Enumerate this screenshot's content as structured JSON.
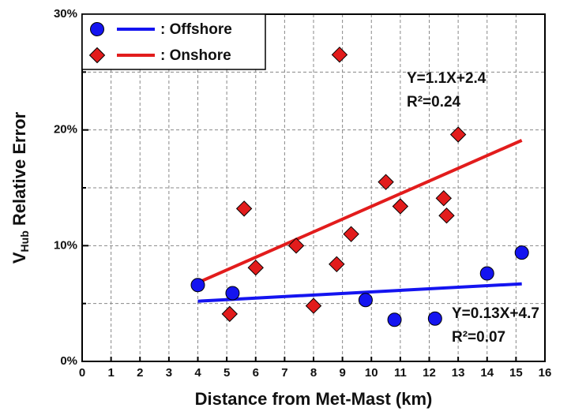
{
  "chart_data": {
    "type": "scatter",
    "x_label": "Distance from Met-Mast (km)",
    "y_label": {
      "main": "V",
      "sub": "Hub",
      "rest": " Relative Error"
    },
    "xlim": [
      0,
      16
    ],
    "xticks": [
      0,
      1,
      2,
      3,
      4,
      5,
      6,
      7,
      8,
      9,
      10,
      11,
      12,
      13,
      14,
      15,
      16
    ],
    "ylim": [
      0,
      30
    ],
    "yticks": [
      {
        "value": 0,
        "label": "0%"
      },
      {
        "value": 10,
        "label": "10%"
      },
      {
        "value": 20,
        "label": "20%"
      },
      {
        "value": 30,
        "label": "30%"
      }
    ],
    "yminorticks": [
      5,
      15,
      25
    ],
    "grid": true,
    "legend": "upper left",
    "series": [
      {
        "name": ": Offshore",
        "color": "#1414f0",
        "marker": "circle",
        "x": [
          4,
          5.2,
          9.8,
          10.8,
          12.2,
          14,
          15.2
        ],
        "values": [
          6.6,
          5.9,
          5.3,
          3.6,
          3.7,
          7.6,
          9.4
        ],
        "fit": {
          "x": [
            4,
            15.2
          ],
          "values": [
            5.2,
            6.7
          ]
        },
        "equation": "Y=0.13X+4.7",
        "r2": "R²=0.07"
      },
      {
        "name": ": Onshore",
        "color": "#e21c1c",
        "marker": "diamond",
        "x": [
          5.1,
          5.6,
          6,
          7.4,
          8,
          8.8,
          8.9,
          9.3,
          10.5,
          11,
          12.5,
          12.6,
          13
        ],
        "values": [
          4.1,
          13.2,
          8.1,
          10,
          4.8,
          8.4,
          26.5,
          11,
          15.5,
          13.4,
          14.1,
          12.6,
          19.6
        ],
        "fit": {
          "x": [
            4,
            15.2
          ],
          "values": [
            6.8,
            19.1
          ]
        },
        "equation": "Y=1.1X+2.4",
        "r2": "R²=0.24"
      }
    ]
  }
}
